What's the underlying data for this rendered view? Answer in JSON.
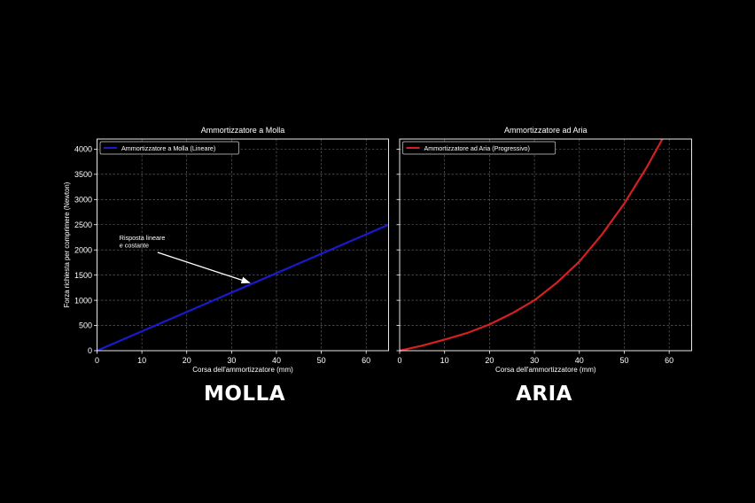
{
  "ylabel": "Forza richiesta per comprimere (Newton)",
  "chart_data": [
    {
      "type": "line",
      "title": "Ammortizzatore a Molla",
      "xlabel": "Corsa dell'ammortizzatore (mm)",
      "ylabel": "Forza richiesta per comprimere (Newton)",
      "xlim": [
        0,
        65
      ],
      "ylim": [
        0,
        4200
      ],
      "x_ticks": [
        0,
        10,
        20,
        30,
        40,
        50,
        60
      ],
      "y_ticks": [
        0,
        500,
        1000,
        1500,
        2000,
        2500,
        3000,
        3500,
        4000
      ],
      "grid": true,
      "legend_position": "top-left",
      "series": [
        {
          "name": "Ammortizzatore a Molla (Lineare)",
          "color": "#1a1acc",
          "x": [
            0,
            65
          ],
          "y": [
            0,
            2500
          ]
        }
      ],
      "annotation": {
        "text": [
          "Risposta lineare",
          "e costante"
        ],
        "target": [
          34,
          1350
        ],
        "text_at": [
          5,
          2200
        ]
      }
    },
    {
      "type": "line",
      "title": "Ammortizzatore ad Aria",
      "xlabel": "Corsa dell'ammortizzatore (mm)",
      "xlim": [
        0,
        65
      ],
      "ylim": [
        0,
        4200
      ],
      "x_ticks": [
        0,
        10,
        20,
        30,
        40,
        50,
        60
      ],
      "y_ticks": [
        0,
        500,
        1000,
        1500,
        2000,
        2500,
        3000,
        3500,
        4000
      ],
      "grid": true,
      "legend_position": "top-left",
      "series": [
        {
          "name": "Ammortizzatore ad Aria (Progressivo)",
          "color": "#d42020",
          "x": [
            0,
            5,
            10,
            15,
            20,
            25,
            30,
            35,
            40,
            45,
            50,
            55,
            58.5
          ],
          "y": [
            0,
            100,
            220,
            350,
            520,
            740,
            1000,
            1350,
            1770,
            2300,
            2920,
            3640,
            4200
          ]
        }
      ]
    }
  ],
  "labels": {
    "left": "MOLLA",
    "right": "ARIA"
  }
}
